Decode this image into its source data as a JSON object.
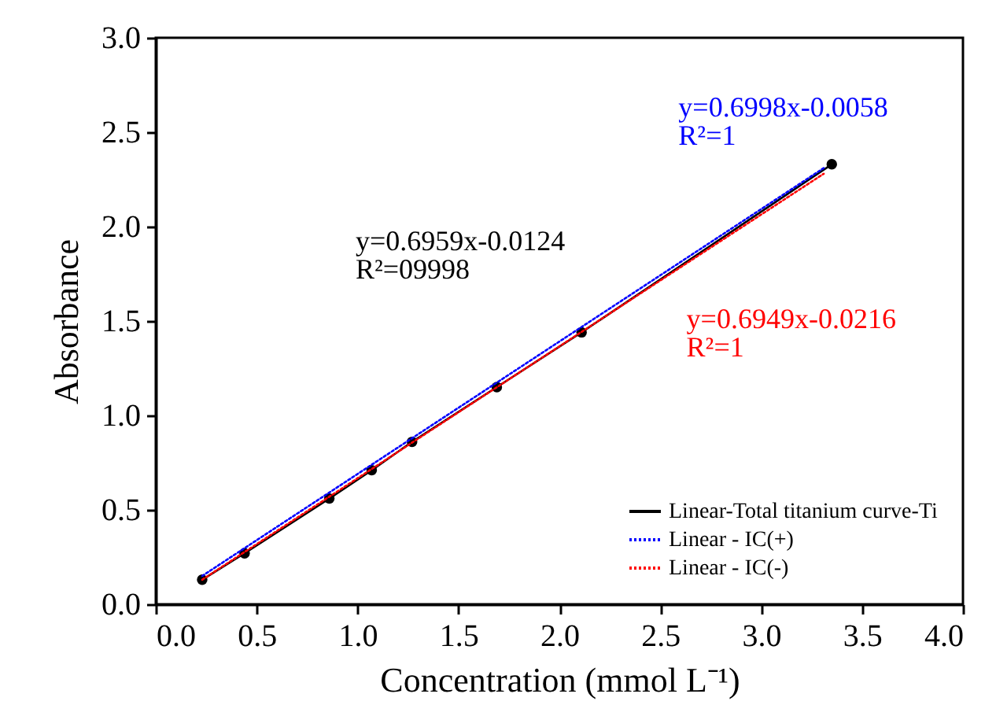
{
  "chart_data": {
    "type": "line",
    "xlabel": "Concentration (mmol L⁻¹)",
    "ylabel": "Absorbance",
    "xlim": [
      0,
      4
    ],
    "xticks": [
      {
        "value": 0,
        "label": "0.0"
      },
      0.5,
      {
        "value": 1,
        "label": "1.0"
      },
      1.5,
      {
        "value": 2,
        "label": "2.0"
      },
      2.5,
      {
        "value": 3,
        "label": "3.0"
      },
      3.5,
      {
        "value": 4,
        "label": "4.0"
      }
    ],
    "ylim": [
      0,
      3
    ],
    "yticks": [
      {
        "value": 0,
        "label": "0.0"
      },
      0.5,
      {
        "value": 1,
        "label": "1.0"
      },
      1.5,
      {
        "value": 2,
        "label": "2.0"
      },
      2.5,
      {
        "value": 3,
        "label": "3.0"
      }
    ],
    "grid": false,
    "legend": "bottom right",
    "series": [
      {
        "name": "Linear-Total titanium curve-Ti",
        "color": "#000000",
        "marker": "circle",
        "line_style": "solid",
        "x": [
          0.23,
          0.44,
          0.86,
          1.07,
          1.27,
          1.69,
          2.11,
          3.35
        ],
        "values": [
          0.13,
          0.27,
          0.56,
          0.71,
          0.86,
          1.15,
          1.44,
          2.33
        ]
      },
      {
        "name": "Linear - IC(+)",
        "color": "#0000ff",
        "marker": "none",
        "line_style": "dotted",
        "x": [
          0.23,
          3.31
        ],
        "values": [
          0.15,
          2.31
        ]
      },
      {
        "name": "Linear - IC(-)",
        "color": "#ff0000",
        "marker": "none",
        "line_style": "dotted",
        "x": [
          0.23,
          3.31
        ],
        "values": [
          0.13,
          2.28
        ]
      }
    ],
    "annotations": [
      "y=0.6959x-0.0124\nR²=09998",
      "y=0.6998x-0.0058\nR²=1",
      "y=0.6949x-0.0216\nR²=1"
    ]
  }
}
